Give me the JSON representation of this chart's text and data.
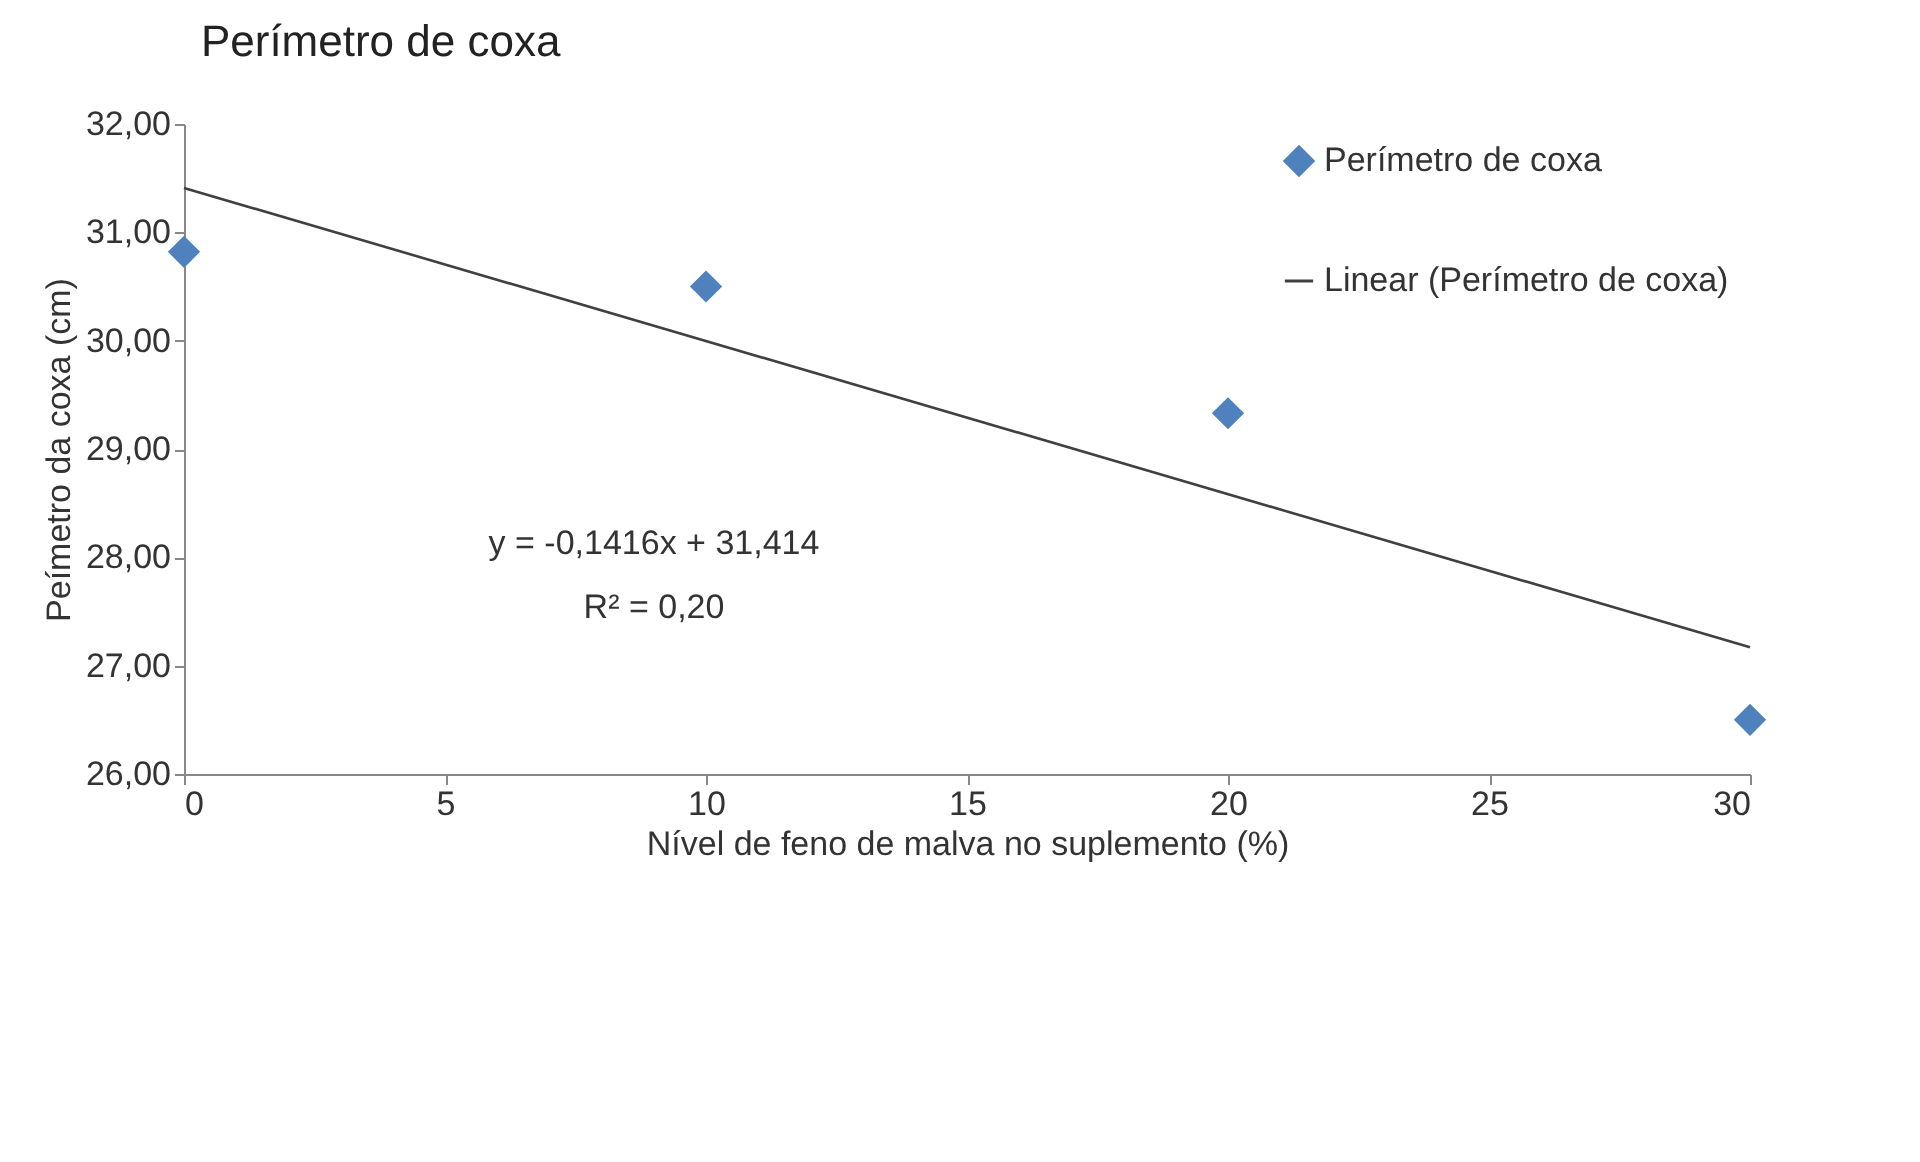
{
  "chart_data": {
    "type": "scatter",
    "title": "Perímetro de coxa",
    "xlabel": "Nível de feno de malva no suplemento (%)",
    "ylabel": "Peímetro da coxa (cm)",
    "x": [
      0,
      10,
      20,
      30
    ],
    "series": [
      {
        "name": "Perímetro de coxa",
        "color": "#4f81bd",
        "values": [
          30.82,
          30.5,
          29.33,
          26.5
        ]
      },
      {
        "name": "Linear (Perímetro de coxa)",
        "type": "line",
        "marker": "none",
        "color": "#404040",
        "x": [
          0,
          30
        ],
        "values": [
          31.41,
          27.17
        ]
      }
    ],
    "annotations": [
      "y = -0,1416x + 31,414",
      "R² = 0,20"
    ],
    "xlim": [
      0,
      30
    ],
    "xticks": [
      0,
      5,
      10,
      15,
      20,
      25,
      30
    ],
    "ylim": [
      26,
      32
    ],
    "yticks": [
      {
        "value": 26,
        "label": "26,00"
      },
      {
        "value": 27,
        "label": "27,00"
      },
      {
        "value": 28,
        "label": "28,00"
      },
      {
        "value": 29,
        "label": "29,00"
      },
      {
        "value": 30,
        "label": "30,00"
      },
      {
        "value": 31,
        "label": "31,00"
      },
      {
        "value": 32,
        "label": "32,00"
      }
    ],
    "grid": false,
    "legend": "top right",
    "marker": "diamond",
    "line_style": "solid"
  }
}
